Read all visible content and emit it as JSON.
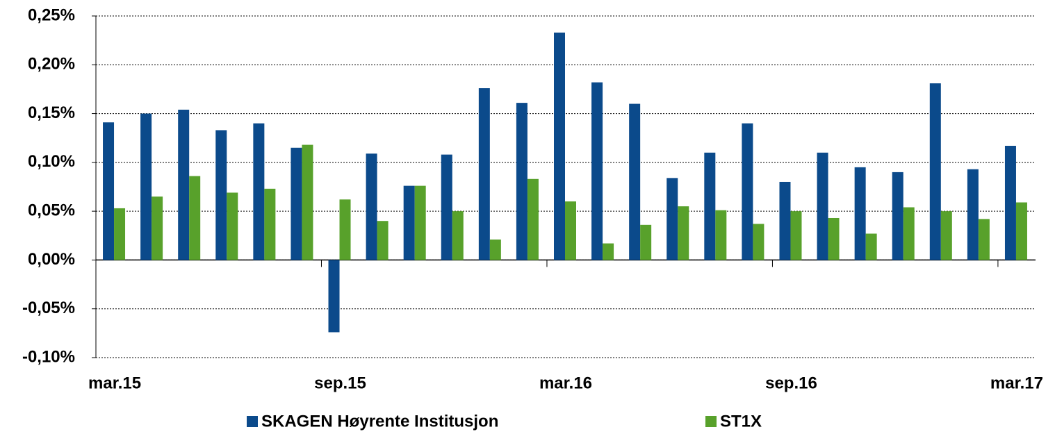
{
  "chart_data": {
    "type": "bar",
    "categories": [
      "mar.15",
      null,
      null,
      null,
      null,
      null,
      "sep.15",
      null,
      null,
      null,
      null,
      null,
      "mar.16",
      null,
      null,
      null,
      null,
      null,
      "sep.16",
      null,
      null,
      null,
      null,
      null,
      "mar.17"
    ],
    "series": [
      {
        "name": "SKAGEN Høyrente Institusjon",
        "color": "#0b4a8b",
        "values": [
          0.141,
          0.15,
          0.154,
          0.133,
          0.14,
          0.115,
          -0.074,
          0.109,
          0.076,
          0.108,
          0.176,
          0.161,
          0.233,
          0.182,
          0.16,
          0.084,
          0.11,
          0.14,
          0.08,
          0.11,
          0.095,
          0.09,
          0.181,
          0.093,
          0.117
        ]
      },
      {
        "name": "ST1X",
        "color": "#58a12b",
        "values": [
          0.053,
          0.065,
          0.086,
          0.069,
          0.073,
          0.118,
          0.062,
          0.04,
          0.076,
          0.05,
          0.021,
          0.083,
          0.06,
          0.017,
          0.036,
          0.055,
          0.051,
          0.037,
          0.05,
          0.043,
          0.027,
          0.054,
          0.05,
          0.042,
          0.059
        ]
      }
    ],
    "ylim": [
      -0.1,
      0.25
    ],
    "yticks": [
      {
        "value": -0.1,
        "label": "-0,10%"
      },
      {
        "value": -0.05,
        "label": "-0,05%"
      },
      {
        "value": 0,
        "label": "0,00%"
      },
      {
        "value": 0.05,
        "label": "0,05%"
      },
      {
        "value": 0.1,
        "label": "0,10%"
      },
      {
        "value": 0.15,
        "label": "0,15%"
      },
      {
        "value": 0.2,
        "label": "0,20%"
      },
      {
        "value": 0.25,
        "label": "0,25%"
      }
    ],
    "grid": true,
    "legend": "bottom"
  }
}
